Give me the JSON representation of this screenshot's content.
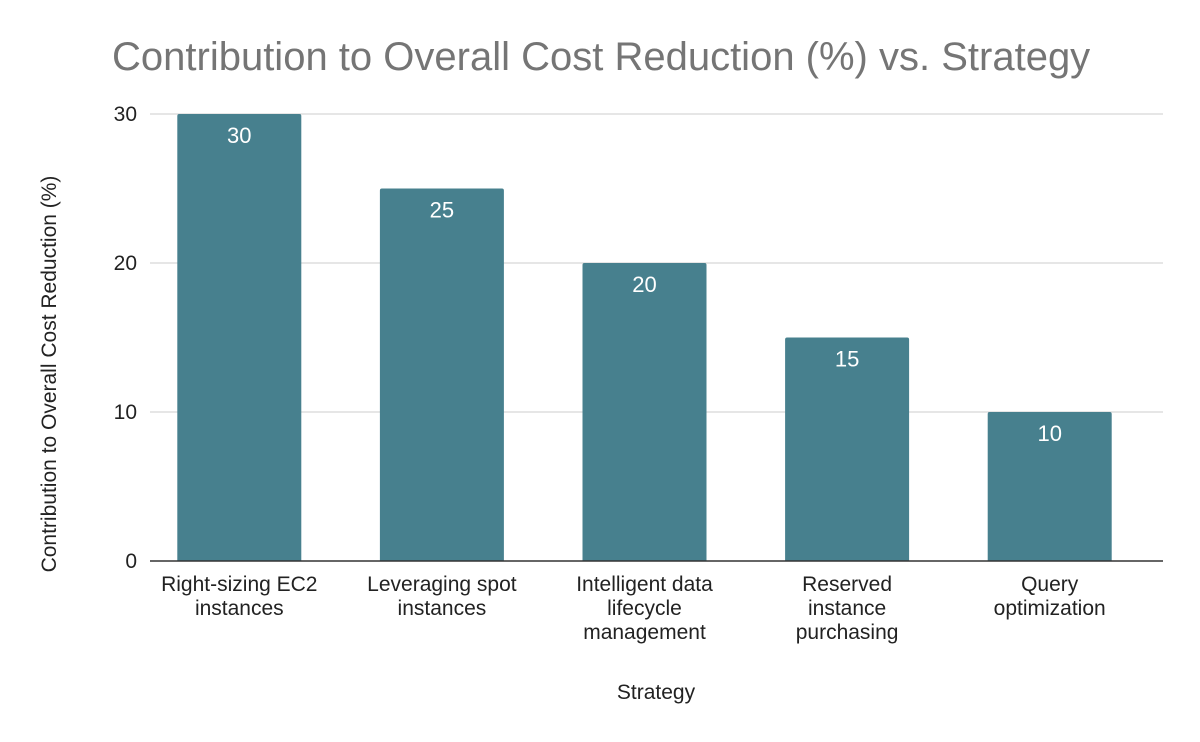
{
  "chart_data": {
    "type": "bar",
    "title": "Contribution to Overall Cost Reduction (%) vs. Strategy",
    "xlabel": "Strategy",
    "ylabel": "Contribution to Overall Cost Reduction (%)",
    "categories": [
      [
        "Right-sizing EC2",
        "instances"
      ],
      [
        "Leveraging spot",
        "instances"
      ],
      [
        "Intelligent data",
        "lifecycle",
        "management"
      ],
      [
        "Reserved",
        "instance",
        "purchasing"
      ],
      [
        "Query",
        "optimization"
      ]
    ],
    "values": [
      30,
      25,
      20,
      15,
      10
    ],
    "data_labels": [
      "30",
      "25",
      "20",
      "15",
      "10"
    ],
    "ylim": [
      0,
      30
    ],
    "yticks": [
      0,
      10,
      20,
      30
    ],
    "ytick_labels": [
      "0",
      "10",
      "20",
      "30"
    ],
    "grid": true,
    "legend": "none",
    "bar_color": "#47808e",
    "title_color": "#757575"
  }
}
